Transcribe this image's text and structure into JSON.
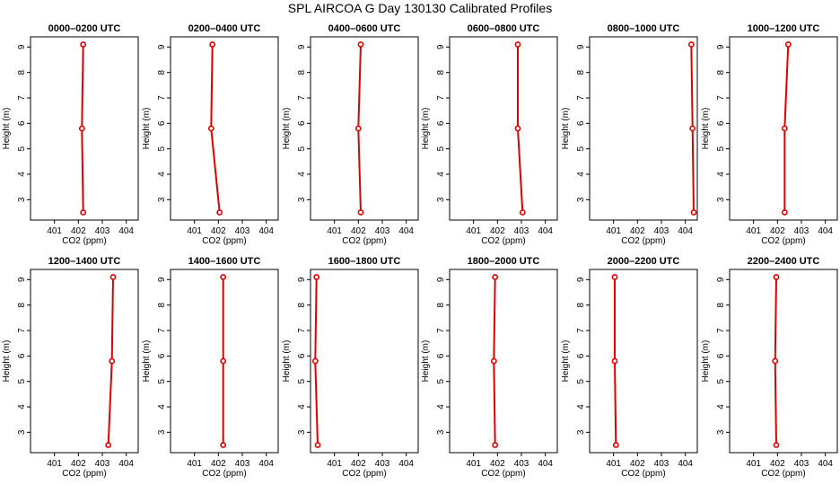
{
  "title": "SPL AIRCOA G  Day 130130  Calibrated Profiles",
  "chart_data": {
    "type": "line",
    "line_color": "#dd0000",
    "marker": "open-circle",
    "xlim": [
      400,
      404.5
    ],
    "ylim": [
      2.2,
      9.4
    ],
    "x_ticks": [
      401,
      402,
      403,
      404
    ],
    "y_ticks": [
      3,
      4,
      5,
      6,
      7,
      8,
      9
    ],
    "panels": [
      {
        "title": "0000–0200 UTC",
        "xlabel": "CO2 (ppm)",
        "ylabel": "Height (m)",
        "heights": [
          2.5,
          5.8,
          9.1
        ],
        "co2": [
          402.2,
          402.15,
          402.2
        ]
      },
      {
        "title": "0200–0400 UTC",
        "xlabel": "CO2 (ppm)",
        "ylabel": "Height (m)",
        "heights": [
          2.5,
          5.8,
          9.1
        ],
        "co2": [
          402.05,
          401.7,
          401.75
        ]
      },
      {
        "title": "0400–0600 UTC",
        "xlabel": "CO2 (ppm)",
        "ylabel": "Height (m)",
        "heights": [
          2.5,
          5.8,
          9.1
        ],
        "co2": [
          402.1,
          402.0,
          402.1
        ]
      },
      {
        "title": "0600–0800 UTC",
        "xlabel": "CO2 (ppm)",
        "ylabel": "Height (m)",
        "heights": [
          2.5,
          5.8,
          9.1
        ],
        "co2": [
          403.05,
          402.85,
          402.85
        ]
      },
      {
        "title": "0800–1000 UTC",
        "xlabel": "CO2 (ppm)",
        "ylabel": "Height (m)",
        "heights": [
          2.5,
          5.8,
          9.1
        ],
        "co2": [
          404.35,
          404.3,
          404.25
        ]
      },
      {
        "title": "1000–1200 UTC",
        "xlabel": "CO2 (ppm)",
        "ylabel": "Height (m)",
        "heights": [
          2.5,
          5.8,
          9.1
        ],
        "co2": [
          402.3,
          402.3,
          402.45
        ]
      },
      {
        "title": "1200–1400 UTC",
        "xlabel": "CO2 (ppm)",
        "ylabel": "Height (m)",
        "heights": [
          2.5,
          5.8,
          9.1
        ],
        "co2": [
          403.25,
          403.4,
          403.45
        ]
      },
      {
        "title": "1400–1600 UTC",
        "xlabel": "CO2 (ppm)",
        "ylabel": "Height (m)",
        "heights": [
          2.5,
          5.8,
          9.1
        ],
        "co2": [
          402.2,
          402.2,
          402.2
        ]
      },
      {
        "title": "1600–1800 UTC",
        "xlabel": "CO2 (ppm)",
        "ylabel": "Height (m)",
        "heights": [
          2.5,
          5.8,
          9.1
        ],
        "co2": [
          400.3,
          400.2,
          400.25
        ]
      },
      {
        "title": "1800–2000 UTC",
        "xlabel": "CO2 (ppm)",
        "ylabel": "Height (m)",
        "heights": [
          2.5,
          5.8,
          9.1
        ],
        "co2": [
          401.9,
          401.85,
          401.9
        ]
      },
      {
        "title": "2000–2200 UTC",
        "xlabel": "CO2 (ppm)",
        "ylabel": "Height (m)",
        "heights": [
          2.5,
          5.8,
          9.1
        ],
        "co2": [
          401.1,
          401.05,
          401.05
        ]
      },
      {
        "title": "2200–2400 UTC",
        "xlabel": "CO2 (ppm)",
        "ylabel": "Height (m)",
        "heights": [
          2.5,
          5.8,
          9.1
        ],
        "co2": [
          401.95,
          401.9,
          401.95
        ]
      }
    ]
  }
}
